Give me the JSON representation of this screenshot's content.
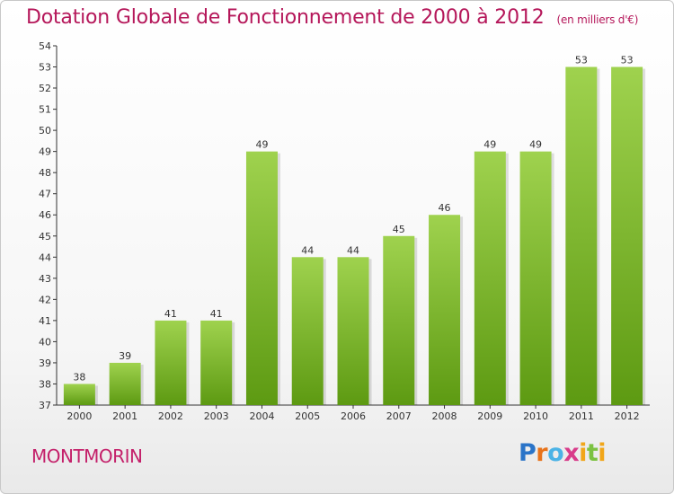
{
  "header": {
    "title": "Dotation Globale de Fonctionnement de 2000 à 2012",
    "unit": "(en milliers d'€)"
  },
  "commune": "MONTMORIN",
  "logo": "Proxiti",
  "colors": {
    "title": "#b5175a",
    "bar_light": "#9fd24e",
    "bar_dark": "#5d9a12",
    "axis": "#333333",
    "grid": "#dcdcdc"
  },
  "chart_data": {
    "type": "bar",
    "title": "Dotation Globale de Fonctionnement de 2000 à 2012",
    "xlabel": "",
    "ylabel": "",
    "categories": [
      "2000",
      "2001",
      "2002",
      "2003",
      "2004",
      "2005",
      "2006",
      "2007",
      "2008",
      "2009",
      "2010",
      "2011",
      "2012"
    ],
    "values": [
      38,
      39,
      41,
      41,
      49,
      44,
      44,
      45,
      46,
      49,
      49,
      53,
      53
    ],
    "ylim": [
      37,
      54
    ],
    "yticks": [
      37,
      38,
      39,
      40,
      41,
      42,
      43,
      44,
      45,
      46,
      47,
      48,
      49,
      50,
      51,
      52,
      53,
      54
    ],
    "grid": false,
    "data_labels": true
  }
}
